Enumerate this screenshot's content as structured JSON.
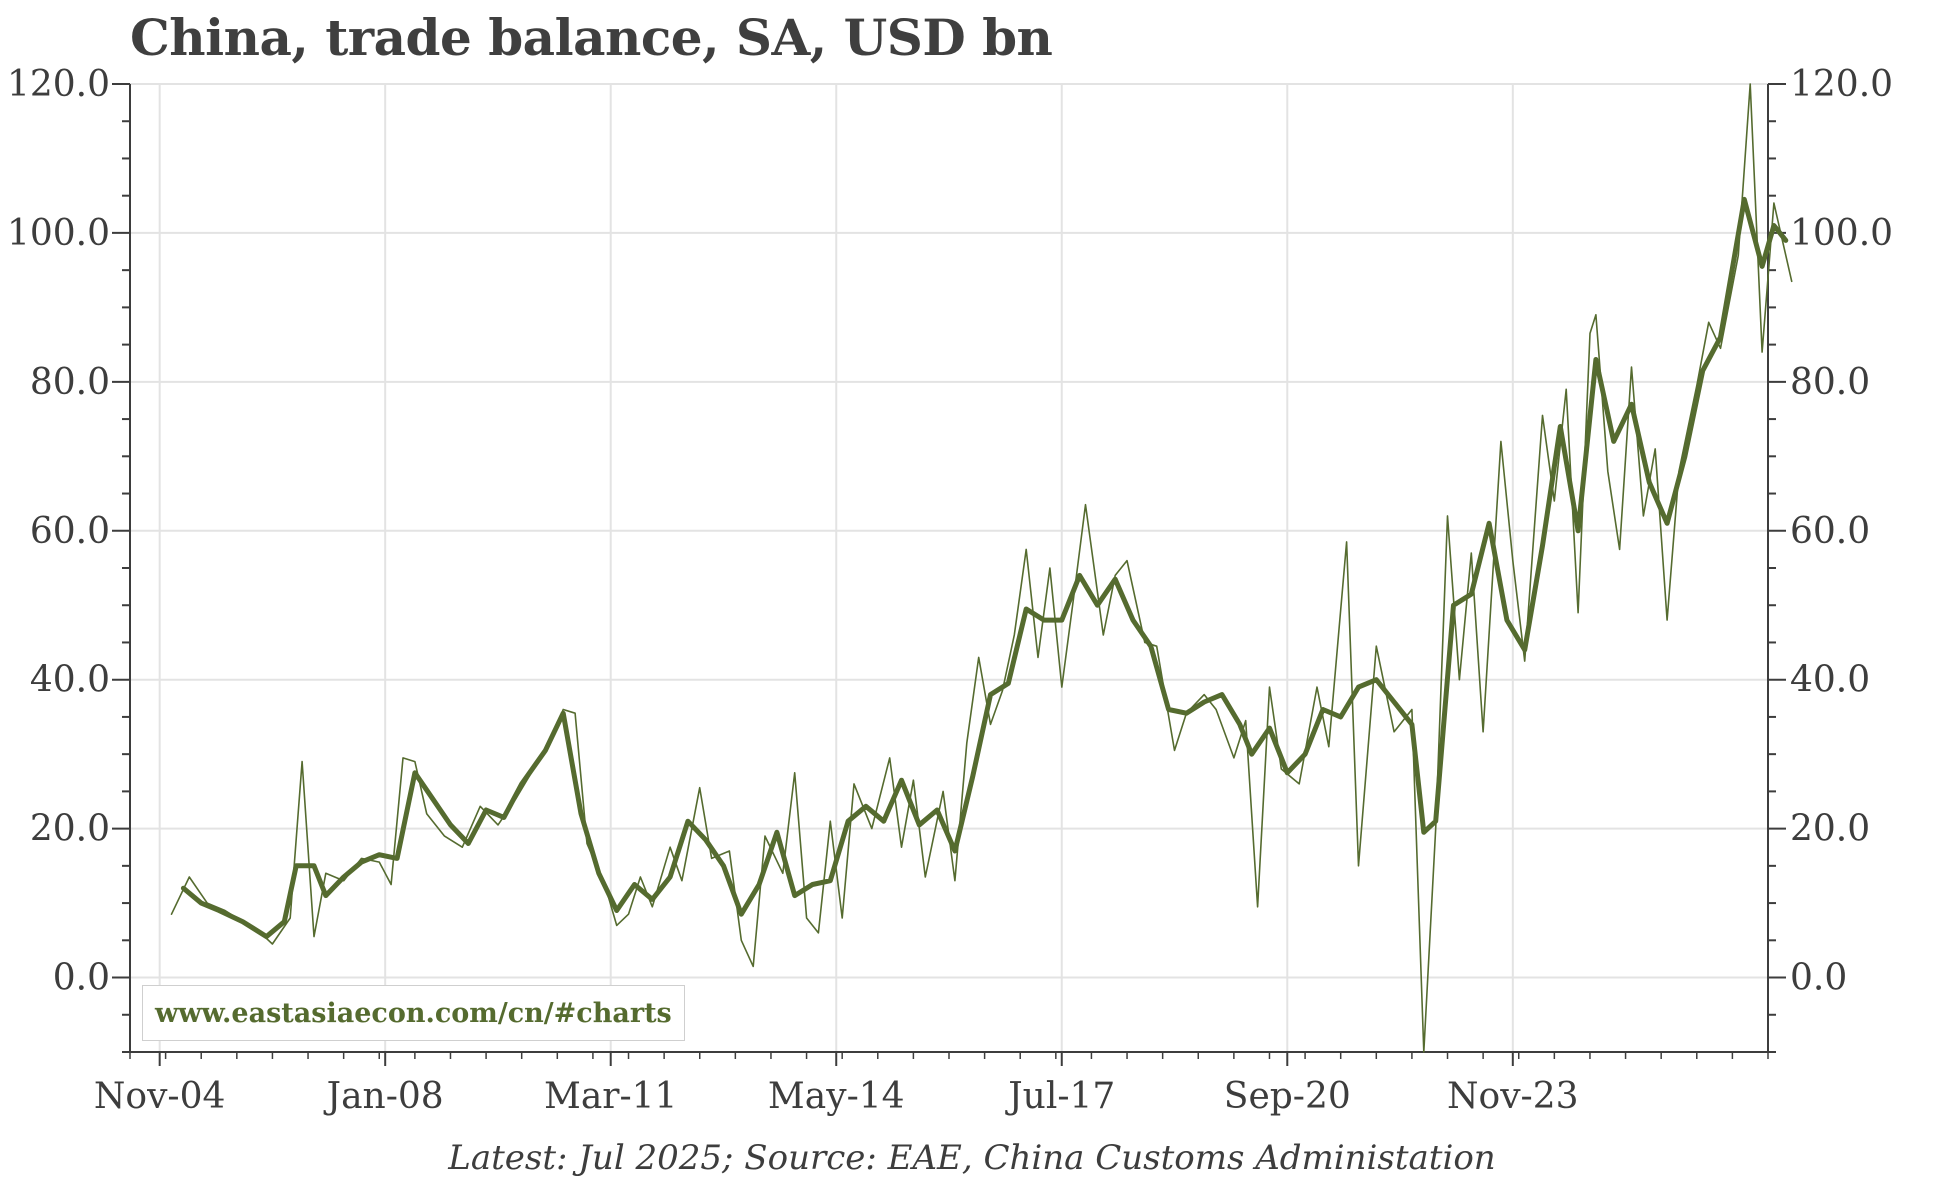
{
  "title": "China, trade balance, SA, USD bn",
  "footer": "Latest: Jul 2025; Source: EAE, China Customs Administation",
  "watermark": "www.eastasiaecon.com/cn/#charts",
  "colors": {
    "series": "#556b2f",
    "grid": "#e3e3e3",
    "axis": "#3d3d3d"
  },
  "chart_data": {
    "type": "line",
    "title": "China, trade balance, SA, USD bn",
    "ylim": [
      -10,
      120
    ],
    "yticks": [
      "120.0",
      "100.0",
      "80.0",
      "60.0",
      "40.0",
      "20.0",
      "0.0"
    ],
    "ytick_values": [
      120,
      100,
      80,
      60,
      40,
      20,
      0
    ],
    "xticks": [
      "Nov-04",
      "Jan-08",
      "Mar-11",
      "May-14",
      "Jul-17",
      "Sep-20",
      "Nov-23"
    ],
    "xtick_dates": [
      "2004-11",
      "2008-01",
      "2011-03",
      "2014-05",
      "2017-07",
      "2020-09",
      "2023-11"
    ],
    "xlim": [
      "2004-06",
      "2027-06"
    ],
    "grid": true,
    "right_axis": true,
    "series": [
      {
        "style": "thin",
        "points": [
          [
            "2005-01",
            8.5
          ],
          [
            "2005-04",
            13.5
          ],
          [
            "2005-07",
            10
          ],
          [
            "2005-10",
            9
          ],
          [
            "2006-01",
            7.5
          ],
          [
            "2006-04",
            6
          ],
          [
            "2006-06",
            4.5
          ],
          [
            "2006-09",
            8
          ],
          [
            "2006-11",
            29
          ],
          [
            "2007-01",
            5.5
          ],
          [
            "2007-03",
            14
          ],
          [
            "2007-06",
            13
          ],
          [
            "2007-09",
            16
          ],
          [
            "2007-12",
            15.5
          ],
          [
            "2008-02",
            12.5
          ],
          [
            "2008-04",
            29.5
          ],
          [
            "2008-06",
            29
          ],
          [
            "2008-08",
            22
          ],
          [
            "2008-11",
            19
          ],
          [
            "2009-02",
            17.5
          ],
          [
            "2009-05",
            23
          ],
          [
            "2009-08",
            20.5
          ],
          [
            "2009-11",
            24
          ],
          [
            "2010-02",
            28
          ],
          [
            "2010-05",
            32
          ],
          [
            "2010-07",
            36
          ],
          [
            "2010-09",
            35.5
          ],
          [
            "2010-11",
            18
          ],
          [
            "2011-02",
            12.5
          ],
          [
            "2011-04",
            7
          ],
          [
            "2011-06",
            8.5
          ],
          [
            "2011-08",
            13.5
          ],
          [
            "2011-10",
            9.5
          ],
          [
            "2012-01",
            17.5
          ],
          [
            "2012-03",
            13
          ],
          [
            "2012-06",
            25.5
          ],
          [
            "2012-08",
            16
          ],
          [
            "2012-11",
            17
          ],
          [
            "2013-01",
            5
          ],
          [
            "2013-03",
            1.5
          ],
          [
            "2013-05",
            19
          ],
          [
            "2013-08",
            14
          ],
          [
            "2013-10",
            27.5
          ],
          [
            "2013-12",
            8
          ],
          [
            "2014-02",
            6
          ],
          [
            "2014-04",
            21
          ],
          [
            "2014-06",
            8
          ],
          [
            "2014-08",
            26
          ],
          [
            "2014-11",
            20
          ],
          [
            "2015-02",
            29.5
          ],
          [
            "2015-04",
            17.5
          ],
          [
            "2015-06",
            26.5
          ],
          [
            "2015-08",
            13.5
          ],
          [
            "2015-11",
            25
          ],
          [
            "2016-01",
            13
          ],
          [
            "2016-03",
            31.5
          ],
          [
            "2016-05",
            43
          ],
          [
            "2016-07",
            34
          ],
          [
            "2016-09",
            38.5
          ],
          [
            "2016-11",
            46
          ],
          [
            "2017-01",
            57.5
          ],
          [
            "2017-03",
            43
          ],
          [
            "2017-05",
            55
          ],
          [
            "2017-07",
            39
          ],
          [
            "2017-09",
            51
          ],
          [
            "2017-11",
            63.5
          ],
          [
            "2018-02",
            46
          ],
          [
            "2018-04",
            54
          ],
          [
            "2018-06",
            56
          ],
          [
            "2018-09",
            45
          ],
          [
            "2018-11",
            44.5
          ],
          [
            "2019-02",
            30.5
          ],
          [
            "2019-04",
            35.5
          ],
          [
            "2019-07",
            38
          ],
          [
            "2019-09",
            36
          ],
          [
            "2019-12",
            29.5
          ],
          [
            "2020-02",
            34.5
          ],
          [
            "2020-04",
            9.5
          ],
          [
            "2020-06",
            39
          ],
          [
            "2020-08",
            28
          ],
          [
            "2020-11",
            26
          ],
          [
            "2021-02",
            39
          ],
          [
            "2021-04",
            31
          ],
          [
            "2021-07",
            58.5
          ],
          [
            "2021-09",
            15
          ],
          [
            "2021-12",
            44.5
          ],
          [
            "2022-03",
            33
          ],
          [
            "2022-06",
            36
          ],
          [
            "2022-08",
            -10
          ],
          [
            "2022-10",
            20
          ],
          [
            "2022-12",
            62
          ],
          [
            "2023-02",
            40
          ],
          [
            "2023-04",
            57
          ],
          [
            "2023-06",
            33
          ],
          [
            "2023-09",
            72
          ],
          [
            "2023-11",
            56
          ],
          [
            "2024-01",
            42.5
          ],
          [
            "2024-04",
            75.5
          ],
          [
            "2024-06",
            64
          ],
          [
            "2024-08",
            79
          ],
          [
            "2024-10",
            49
          ],
          [
            "2024-12",
            86.5
          ],
          [
            "2025-01",
            89
          ],
          [
            "2025-03",
            68
          ],
          [
            "2025-05",
            57.5
          ],
          [
            "2025-07",
            82
          ],
          [
            "2025-09",
            62
          ],
          [
            "2025-11",
            71
          ],
          [
            "2026-01",
            48
          ],
          [
            "2026-03",
            68
          ],
          [
            "2026-06",
            79.5
          ],
          [
            "2026-08",
            88
          ],
          [
            "2026-10",
            84.5
          ],
          [
            "2027-01",
            97
          ],
          [
            "2027-03",
            120
          ],
          [
            "2027-05",
            84
          ],
          [
            "2027-07",
            104
          ],
          [
            "2027-10",
            93.5
          ]
        ]
      },
      {
        "style": "thick",
        "points": [
          [
            "2005-03",
            12
          ],
          [
            "2005-06",
            10
          ],
          [
            "2005-09",
            9
          ],
          [
            "2006-01",
            7.5
          ],
          [
            "2006-05",
            5.5
          ],
          [
            "2006-08",
            7.5
          ],
          [
            "2006-10",
            15
          ],
          [
            "2007-01",
            15
          ],
          [
            "2007-03",
            11
          ],
          [
            "2007-06",
            13.5
          ],
          [
            "2007-09",
            15.5
          ],
          [
            "2007-12",
            16.5
          ],
          [
            "2008-03",
            16
          ],
          [
            "2008-06",
            27.5
          ],
          [
            "2008-09",
            24
          ],
          [
            "2008-12",
            20.5
          ],
          [
            "2009-03",
            18
          ],
          [
            "2009-06",
            22.5
          ],
          [
            "2009-09",
            21.5
          ],
          [
            "2009-12",
            26
          ],
          [
            "2010-04",
            30.5
          ],
          [
            "2010-07",
            35.5
          ],
          [
            "2010-10",
            22
          ],
          [
            "2011-01",
            14
          ],
          [
            "2011-04",
            9
          ],
          [
            "2011-07",
            12.5
          ],
          [
            "2011-10",
            10.5
          ],
          [
            "2012-01",
            13.5
          ],
          [
            "2012-04",
            21
          ],
          [
            "2012-07",
            18.5
          ],
          [
            "2012-10",
            15
          ],
          [
            "2013-01",
            8.5
          ],
          [
            "2013-04",
            12.5
          ],
          [
            "2013-07",
            19.5
          ],
          [
            "2013-10",
            11
          ],
          [
            "2014-01",
            12.5
          ],
          [
            "2014-04",
            13
          ],
          [
            "2014-07",
            21
          ],
          [
            "2014-10",
            23
          ],
          [
            "2015-01",
            21
          ],
          [
            "2015-04",
            26.5
          ],
          [
            "2015-07",
            20.5
          ],
          [
            "2015-10",
            22.5
          ],
          [
            "2016-01",
            17
          ],
          [
            "2016-04",
            27
          ],
          [
            "2016-07",
            38
          ],
          [
            "2016-10",
            39.5
          ],
          [
            "2017-01",
            49.5
          ],
          [
            "2017-04",
            48
          ],
          [
            "2017-07",
            48
          ],
          [
            "2017-10",
            54
          ],
          [
            "2018-01",
            50
          ],
          [
            "2018-04",
            53.5
          ],
          [
            "2018-07",
            48
          ],
          [
            "2018-10",
            44.5
          ],
          [
            "2019-01",
            36
          ],
          [
            "2019-04",
            35.5
          ],
          [
            "2019-07",
            37
          ],
          [
            "2019-10",
            38
          ],
          [
            "2020-01",
            34
          ],
          [
            "2020-03",
            30
          ],
          [
            "2020-06",
            33.5
          ],
          [
            "2020-09",
            27.5
          ],
          [
            "2020-12",
            30
          ],
          [
            "2021-03",
            36
          ],
          [
            "2021-06",
            35
          ],
          [
            "2021-09",
            39
          ],
          [
            "2021-12",
            40
          ],
          [
            "2022-03",
            37
          ],
          [
            "2022-06",
            34
          ],
          [
            "2022-08",
            19.5
          ],
          [
            "2022-10",
            21
          ],
          [
            "2023-01",
            50
          ],
          [
            "2023-04",
            51.5
          ],
          [
            "2023-07",
            61
          ],
          [
            "2023-10",
            48
          ],
          [
            "2024-01",
            44
          ],
          [
            "2024-04",
            58
          ],
          [
            "2024-07",
            74
          ],
          [
            "2024-10",
            60
          ],
          [
            "2025-01",
            83
          ],
          [
            "2025-04",
            72
          ],
          [
            "2025-07",
            77
          ],
          [
            "2025-10",
            66.5
          ],
          [
            "2026-01",
            61
          ],
          [
            "2026-04",
            70
          ],
          [
            "2026-07",
            81.5
          ],
          [
            "2026-10",
            86
          ],
          [
            "2027-02",
            104.5
          ],
          [
            "2027-05",
            95.5
          ],
          [
            "2027-07",
            101
          ],
          [
            "2027-09",
            99
          ]
        ]
      }
    ]
  }
}
